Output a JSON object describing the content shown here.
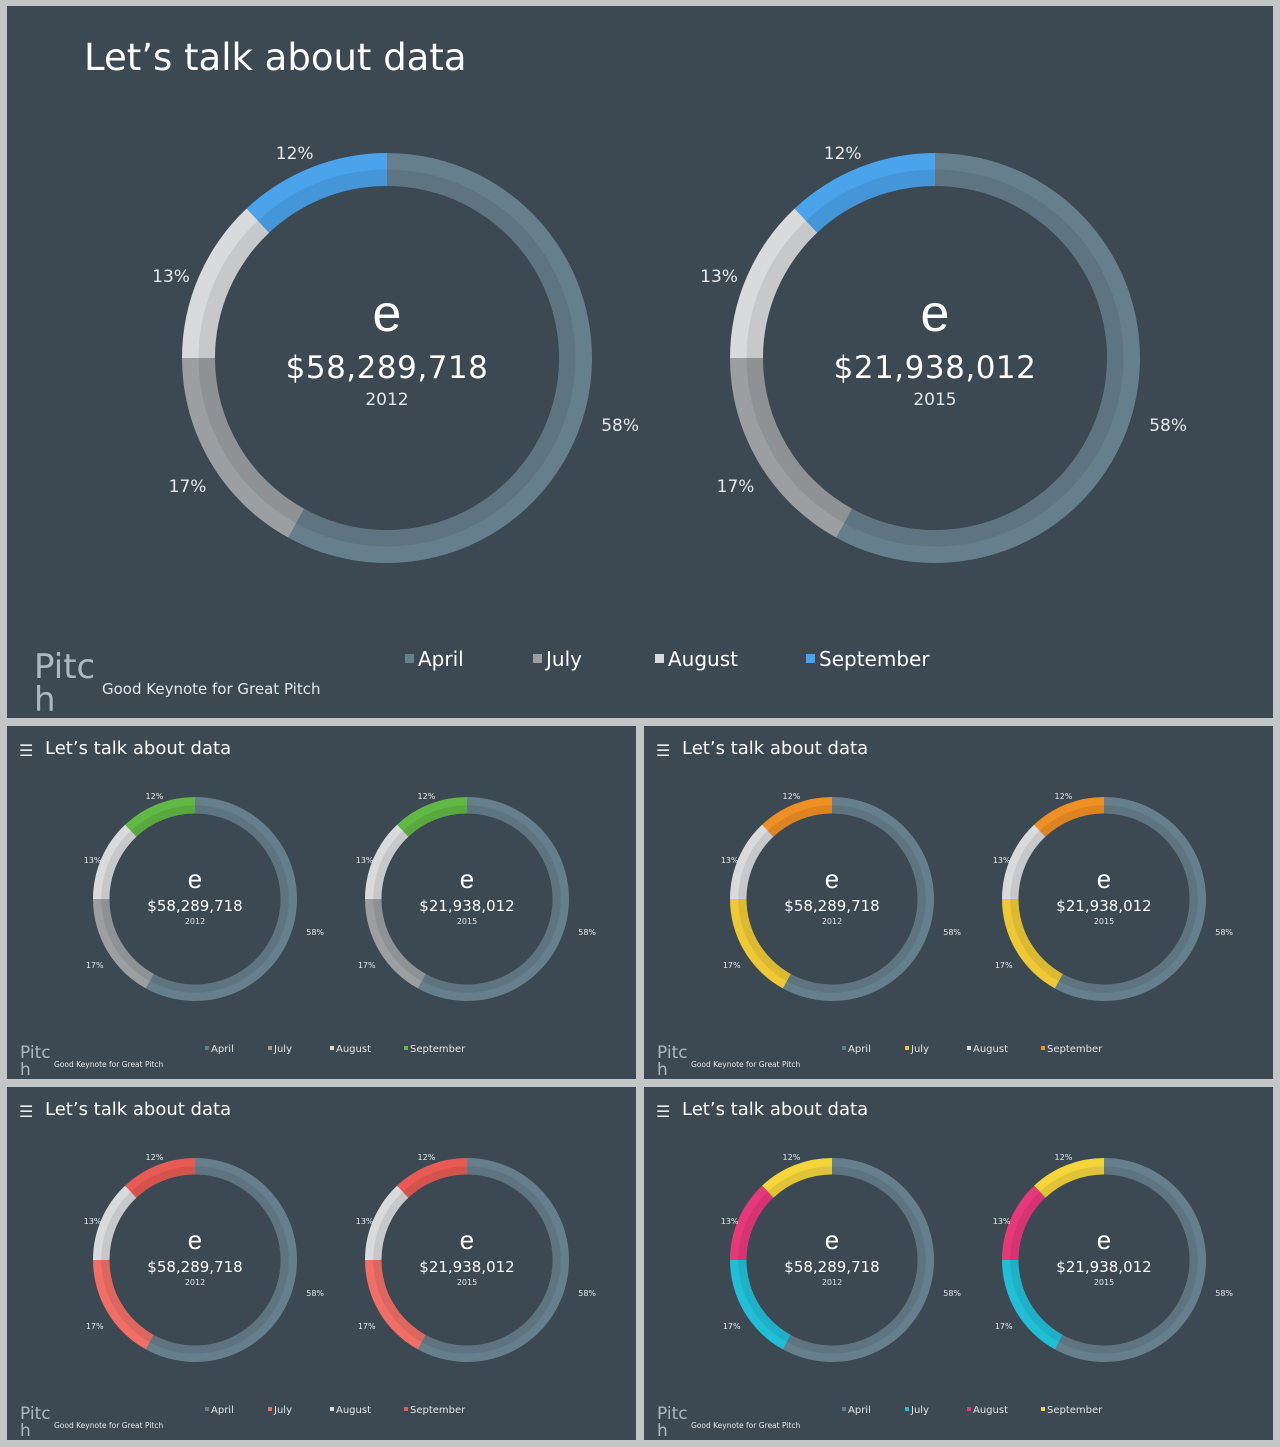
{
  "title": "Let’s talk about data",
  "brand": "Pitc\nh",
  "tagline": "Good Keynote for Great Pitch",
  "legend_labels": [
    "April",
    "July",
    "August",
    "September"
  ],
  "center_glyph": "e",
  "charts": [
    {
      "amount": "$58,289,718",
      "year": "2012"
    },
    {
      "amount": "$21,938,012",
      "year": "2015"
    }
  ],
  "chart_data": {
    "type": "pie",
    "style": "donut",
    "categories": [
      "April",
      "July",
      "August",
      "September"
    ],
    "values": [
      58,
      17,
      13,
      12
    ],
    "value_labels": [
      "58%",
      "17%",
      "13%",
      "12%"
    ],
    "legend_position": "bottom"
  },
  "themes": [
    {
      "colors": {
        "April": "#667f8d",
        "July": "#9c9fa1",
        "August": "#d8dadb",
        "September": "#4ba3ec"
      }
    },
    {
      "colors": {
        "April": "#667f8d",
        "July": "#9c9fa1",
        "August": "#d8dadb",
        "September": "#62b844"
      }
    },
    {
      "colors": {
        "April": "#667f8d",
        "July": "#eec935",
        "August": "#d8dadb",
        "September": "#ef9024"
      }
    },
    {
      "colors": {
        "April": "#667f8d",
        "July": "#f06f67",
        "August": "#d8dadb",
        "September": "#e85b54"
      }
    },
    {
      "colors": {
        "April": "#667f8d",
        "July": "#21bfd6",
        "August": "#e8387c",
        "September": "#f4d53a"
      }
    }
  ]
}
